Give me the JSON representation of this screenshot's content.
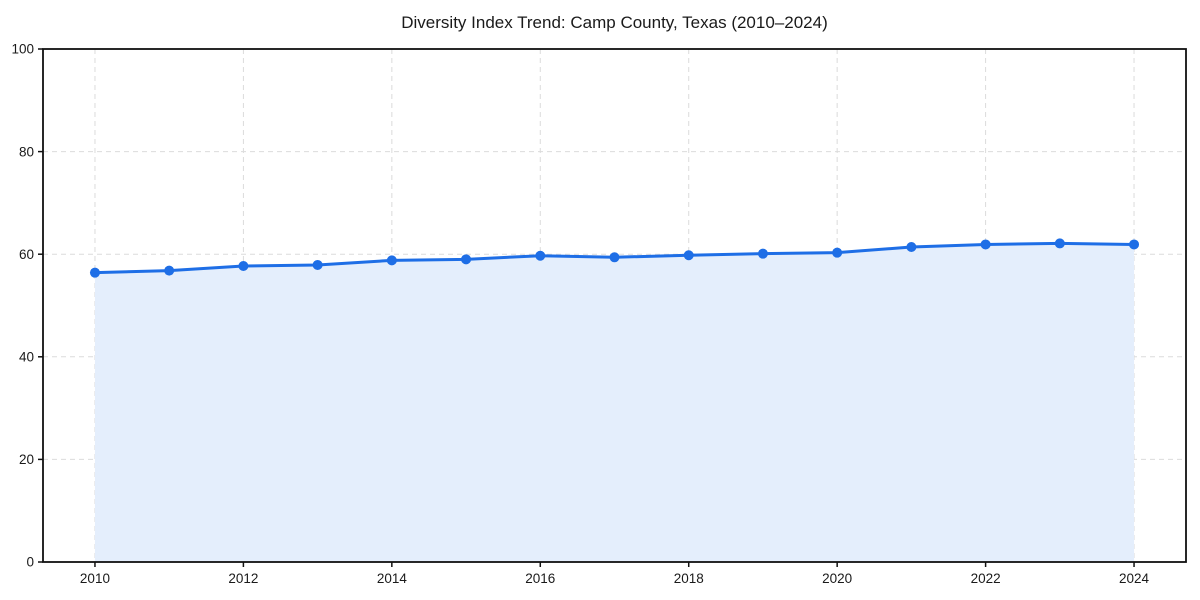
{
  "chart_data": {
    "type": "area",
    "title": "Diversity Index Trend: Camp County, Texas (2010–2024)",
    "x": [
      2010,
      2011,
      2012,
      2013,
      2014,
      2015,
      2016,
      2017,
      2018,
      2019,
      2020,
      2021,
      2022,
      2023,
      2024
    ],
    "series": [
      {
        "name": "Diversity Index",
        "values": [
          56.4,
          56.8,
          57.7,
          57.9,
          58.8,
          59.0,
          59.7,
          59.4,
          59.8,
          60.1,
          60.3,
          61.4,
          61.9,
          62.1,
          61.9
        ]
      }
    ],
    "xlabel": "",
    "ylabel": "",
    "xlim": [
      2009.3,
      2024.7
    ],
    "ylim": [
      0,
      100
    ],
    "xticks": [
      2010,
      2012,
      2014,
      2016,
      2018,
      2020,
      2022,
      2024
    ],
    "yticks": [
      0,
      20,
      40,
      60,
      80,
      100
    ],
    "grid": "dashed, both axes",
    "legend": "none",
    "colors": {
      "line": "#1e6ee6",
      "marker": "#1e6ee6",
      "fill": "#e4eefc",
      "grid": "#dbdbdb",
      "spine": "#111111",
      "tick_text": "#1a1a1a",
      "background": "#ffffff"
    }
  }
}
